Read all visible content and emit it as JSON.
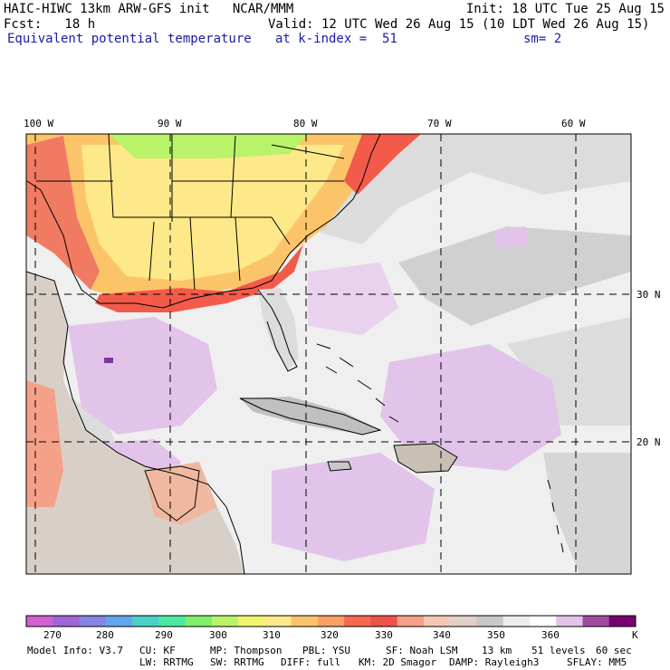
{
  "header": {
    "model_line": "HAIC-HIWC 13km ARW-GFS init   NCAR/MMM",
    "init_line": "Init: 18 UTC Tue 25 Aug 15",
    "fcst_line": "Fcst:   18 h",
    "valid_line": "Valid: 12 UTC Wed 26 Aug 15 (10 LDT Wed 26 Aug 15)",
    "field_name": "Equivalent potential temperature",
    "level_line": "at k-index =  51",
    "smooth_line": "sm= 2"
  },
  "map": {
    "lon_labels": [
      "100 W",
      "90 W",
      "80 W",
      "70 W",
      "60 W"
    ],
    "lat_labels": [
      "30 N",
      "20 N"
    ],
    "colors": {
      "land_warm": "#fde98a",
      "land_orange": "#fcc469",
      "land_red": "#f25a4a",
      "sea_grey": "#dcdcdc",
      "sea_light": "#efefef",
      "sea_purple": "#e2c4ea",
      "coast": "#000000"
    }
  },
  "colorbar": {
    "colors": [
      "#d260cf",
      "#a066d8",
      "#8682e8",
      "#63a4ef",
      "#4cd0c5",
      "#4ce8a0",
      "#7ef06a",
      "#b9f36a",
      "#eef56e",
      "#fde98a",
      "#fcc469",
      "#fb9f63",
      "#f5694f",
      "#f0504a",
      "#f5a18a",
      "#f5c8b4",
      "#e0d0c8",
      "#c8c8c8",
      "#eeeeee",
      "#ffffff",
      "#e2c4ea",
      "#a04aa0",
      "#7a0070"
    ],
    "tick_labels": [
      "270",
      "280",
      "290",
      "300",
      "310",
      "320",
      "330",
      "340",
      "350",
      "360"
    ],
    "unit": "K"
  },
  "footer": {
    "line1": [
      "Model Info: V3.7",
      "CU: KF",
      "MP: Thompson",
      "PBL: YSU",
      "SF: Noah LSM",
      "13 km",
      "51 levels",
      "60 sec"
    ],
    "line2": [
      "LW: RRTMG",
      "SW: RRTMG",
      "DIFF: full",
      "KM: 2D Smagor",
      "DAMP: Rayleigh3",
      "SFLAY: MM5"
    ]
  }
}
